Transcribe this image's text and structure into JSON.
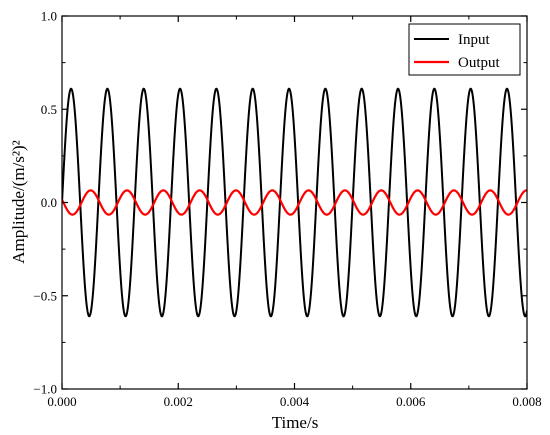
{
  "chart_data": {
    "type": "line",
    "xlabel": "Time/s",
    "ylabel": "Amplitude/(m/s²)²",
    "xlim": [
      0,
      0.008
    ],
    "ylim": [
      -1.0,
      1.0
    ],
    "xticks": [
      0,
      0.002,
      0.004,
      0.006,
      0.008
    ],
    "xtick_labels": [
      "0.000",
      "0.002",
      "0.004",
      "0.006",
      "0.008"
    ],
    "yticks": [
      -1.0,
      -0.5,
      0.0,
      0.5,
      1.0
    ],
    "ytick_labels": [
      "−1.0",
      "−0.5",
      "0.0",
      "0.5",
      "1.0"
    ],
    "grid": false,
    "legend_position": "top-right",
    "series": [
      {
        "name": "Input",
        "color": "#000000",
        "amplitude": 0.61,
        "frequency_hz": 1600,
        "phase_rad": 0.0
      },
      {
        "name": "Output",
        "color": "#ff0000",
        "amplitude": 0.065,
        "frequency_hz": 1600,
        "phase_rad": 2.9
      }
    ]
  }
}
